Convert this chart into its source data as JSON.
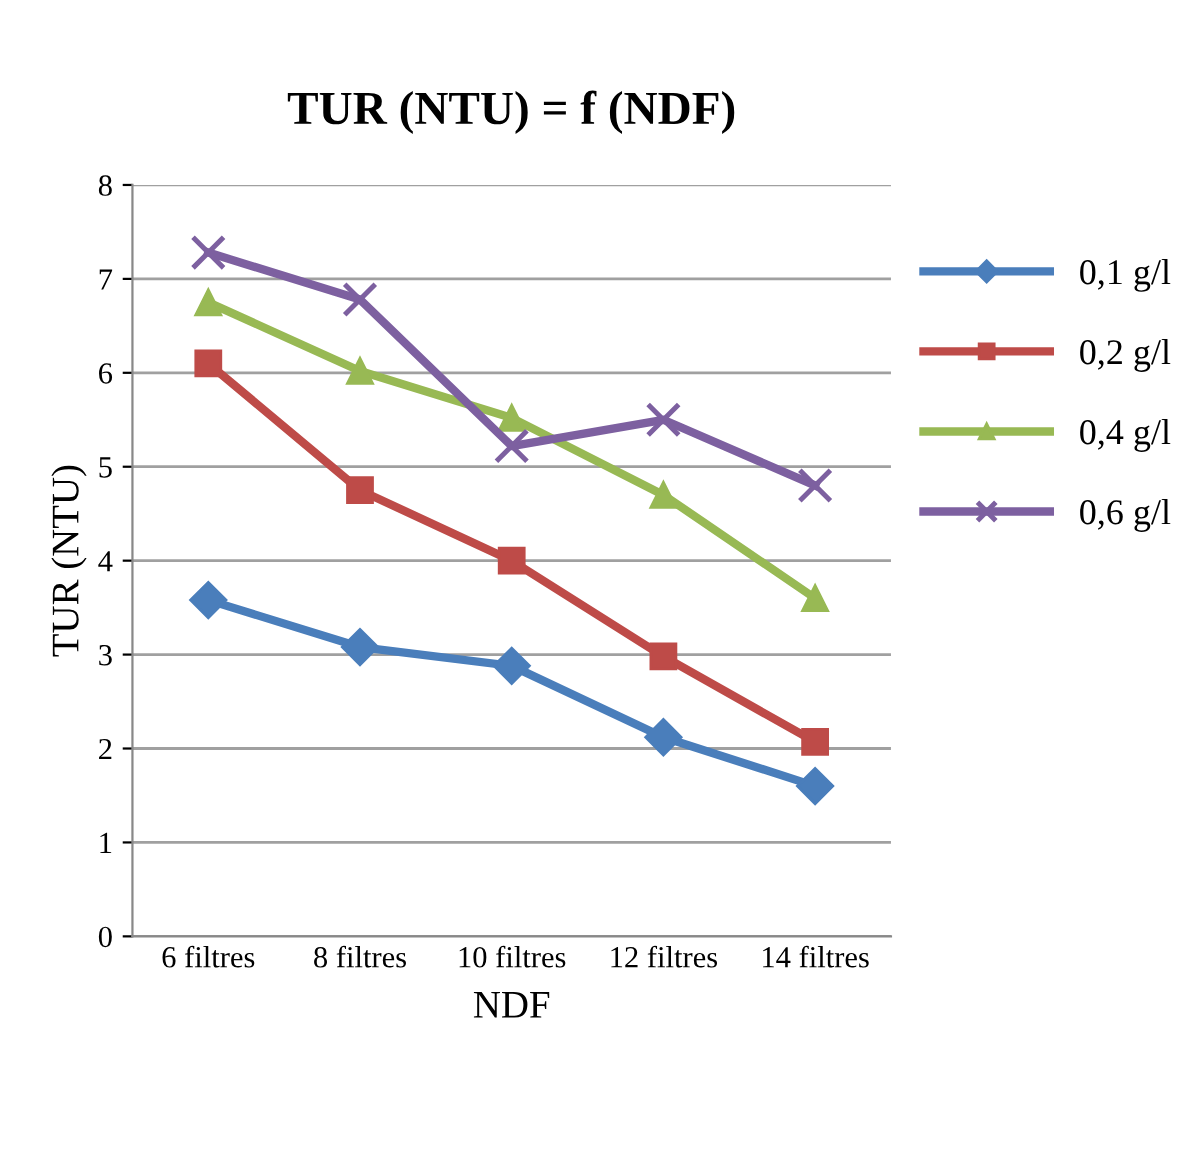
{
  "chart_data": {
    "type": "line",
    "title": "TUR (NTU) = f (NDF)",
    "xlabel": "NDF",
    "ylabel": "TUR (NTU)",
    "categories": [
      "6 filtres",
      "8 filtres",
      "10 filtres",
      "12 filtres",
      "14 filtres"
    ],
    "series": [
      {
        "name": "0,1 g/l",
        "color": "#4a7ebb",
        "marker": "diamond",
        "values": [
          3.58,
          3.08,
          2.88,
          2.12,
          1.6
        ]
      },
      {
        "name": "0,2 g/l",
        "color": "#be4b48",
        "marker": "square",
        "values": [
          6.1,
          4.75,
          4.0,
          2.98,
          2.07
        ]
      },
      {
        "name": "0,4 g/l",
        "color": "#98b954",
        "marker": "triangle",
        "values": [
          6.75,
          6.02,
          5.52,
          4.7,
          3.6
        ]
      },
      {
        "name": "0,6 g/l",
        "color": "#7d60a0",
        "marker": "cross",
        "values": [
          7.28,
          6.78,
          5.22,
          5.5,
          4.8
        ]
      }
    ],
    "ylim": [
      0,
      8
    ],
    "yticks": [
      0,
      1,
      2,
      3,
      4,
      5,
      6,
      7,
      8
    ],
    "grid": "y",
    "legend": "right"
  }
}
